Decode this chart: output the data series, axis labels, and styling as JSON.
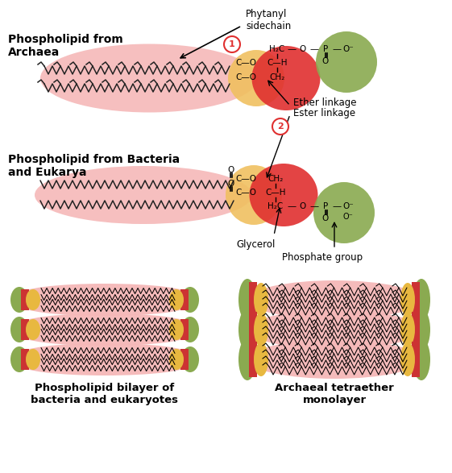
{
  "bg_color": "#ffffff",
  "pink_ellipse_color": "#f5b8b8",
  "red_blob_color": "#e03030",
  "yellow_blob_color": "#f0c060",
  "green_blob_color": "#8aaa50",
  "chain_color": "#222222",
  "label1_archaea": "Phospholipid from\nArchaea",
  "label2_bacteria": "Phospholipid from Bacteria\nand Eukarya",
  "label3_ether": "Ether linkage",
  "label4_ester": "Ester linkage",
  "label5_phytanyl": "Phytanyl\nsidechain",
  "label6_glycerol": "Glycerol",
  "label7_phosphate": "Phosphate group",
  "label8_bilayer": "Phospholipid bilayer of\nbacteria and eukaryotes",
  "label9_tetraether": "Archaeal tetraether\nmonolayer",
  "red_rect_color": "#cc3333",
  "yellow_rect_color": "#e8b840"
}
